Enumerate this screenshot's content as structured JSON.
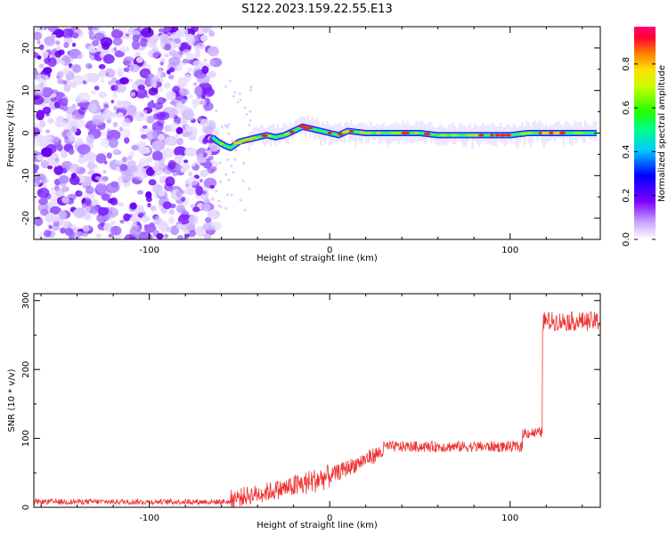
{
  "title": "S122.2023.159.22.55.E13",
  "chart_data": [
    {
      "type": "heatmap",
      "xlabel": "Height of straight line (km)",
      "ylabel": "Frequency (Hz)",
      "xlim": [
        -164,
        150
      ],
      "ylim": [
        -25,
        25
      ],
      "xticks": [
        -100,
        0,
        100
      ],
      "yticks": [
        -20,
        -10,
        0,
        10,
        20
      ],
      "ridge": {
        "x": [
          -65,
          -62,
          -58,
          -55,
          -50,
          -45,
          -40,
          -35,
          -30,
          -25,
          -20,
          -15,
          -10,
          -5,
          0,
          5,
          10,
          20,
          30,
          40,
          50,
          60,
          70,
          80,
          90,
          100,
          110,
          120,
          130,
          140,
          148
        ],
        "freq": [
          -1,
          -2,
          -3,
          -3.5,
          -2,
          -1.5,
          -1,
          -0.5,
          -1,
          -0.5,
          0.5,
          1.5,
          1,
          0.5,
          0,
          -0.5,
          0.5,
          0,
          0,
          0,
          0,
          -0.5,
          -0.5,
          -0.5,
          -0.5,
          -0.5,
          0,
          0,
          0,
          0,
          0
        ]
      },
      "noise_region_x": [
        -164,
        -63
      ],
      "colorbar": {
        "label": "Normalized spectral amplitude",
        "ticks": [
          "0.0",
          "0.2",
          "0.4",
          "0.6",
          "0.8"
        ],
        "range": [
          0,
          0.97
        ]
      }
    },
    {
      "type": "line",
      "xlabel": "Height of straight line (km)",
      "ylabel": "SNR (10 * v/v)",
      "xlim": [
        -164,
        150
      ],
      "ylim": [
        0,
        310
      ],
      "xticks": [
        -100,
        0,
        100
      ],
      "yticks": [
        0,
        100,
        200,
        300
      ],
      "series": [
        {
          "color": "#ee3333",
          "segments": [
            {
              "x": [
                -164,
                -55
              ],
              "mean": 8,
              "noise": 4
            },
            {
              "x": [
                -55,
                -20
              ],
              "mean_start": 12,
              "mean_end": 30,
              "noise": 14
            },
            {
              "x": [
                -20,
                0
              ],
              "mean_start": 30,
              "mean_end": 45,
              "noise": 18
            },
            {
              "x": [
                0,
                30
              ],
              "mean_start": 45,
              "mean_end": 82,
              "noise": 12
            },
            {
              "x": [
                30,
                107
              ],
              "mean": 88,
              "noise": 8
            },
            {
              "x": [
                107,
                118
              ],
              "mean": 108,
              "noise": 8
            },
            {
              "x": [
                118,
                150
              ],
              "mean": 270,
              "noise": 14
            }
          ]
        }
      ]
    }
  ]
}
